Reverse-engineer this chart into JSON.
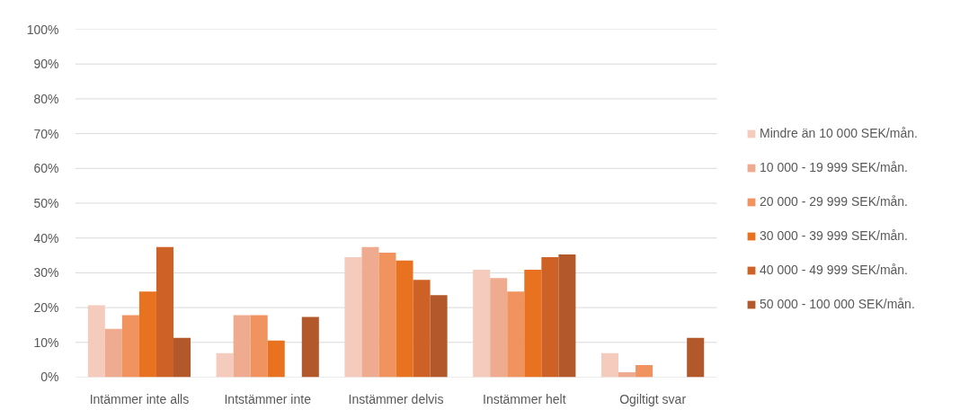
{
  "chart_data": {
    "type": "bar",
    "categories": [
      "Intämmer inte alls",
      "Intstämmer inte",
      "Instämmer delvis",
      "Instämmer helt",
      "Ogiltigt svar"
    ],
    "series": [
      {
        "name": "Mindre än 10 000 SEK/mån.",
        "color": "#f5cbbd",
        "values": [
          20.7,
          6.9,
          34.5,
          30.9,
          6.9
        ]
      },
      {
        "name": "10 000 - 19 999 SEK/mån.",
        "color": "#efab8f",
        "values": [
          13.9,
          17.8,
          37.4,
          28.5,
          1.4
        ]
      },
      {
        "name": "20 000 - 29 999 SEK/mån.",
        "color": "#f0935f",
        "values": [
          17.8,
          17.8,
          35.8,
          24.6,
          3.5
        ]
      },
      {
        "name": "30 000 - 39 999 SEK/mån.",
        "color": "#e8721f",
        "values": [
          24.6,
          10.5,
          33.5,
          30.9,
          null
        ]
      },
      {
        "name": "40 000 - 49 999 SEK/mån.",
        "color": "#cd6126",
        "values": [
          37.4,
          null,
          28.0,
          34.5,
          null
        ]
      },
      {
        "name": "50 000 - 100 000 SEK/mån.",
        "color": "#b2582a",
        "values": [
          11.3,
          17.3,
          23.6,
          35.3,
          11.3
        ]
      }
    ],
    "ylim": [
      0,
      100
    ],
    "yticks": [
      {
        "value": 0,
        "label": "0%"
      },
      {
        "value": 10,
        "label": "10%"
      },
      {
        "value": 20,
        "label": "20%"
      },
      {
        "value": 30,
        "label": "30%"
      },
      {
        "value": 40,
        "label": "40%"
      },
      {
        "value": 50,
        "label": "50%"
      },
      {
        "value": 60,
        "label": "60%"
      },
      {
        "value": 70,
        "label": "70%"
      },
      {
        "value": 80,
        "label": "80%"
      },
      {
        "value": 90,
        "label": "90%"
      },
      {
        "value": 100,
        "label": "100%"
      }
    ],
    "grid": "y",
    "legend": "right"
  }
}
